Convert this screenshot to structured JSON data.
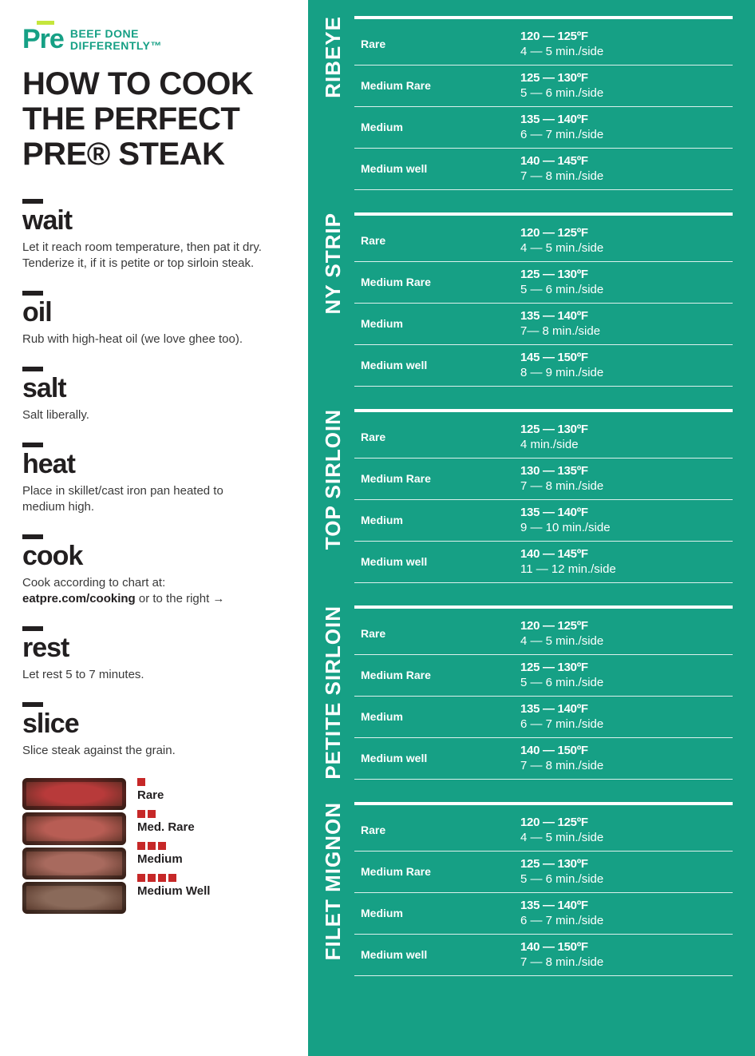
{
  "brand": {
    "logo": "Pre",
    "tagline_line1": "BEEF DONE",
    "tagline_line2": "DIFFERENTLY™",
    "accent_color": "#16a085",
    "lime_color": "#c5e63c"
  },
  "headline": "HOW TO COOK THE PERFECT PRE® STEAK",
  "steps": [
    {
      "title": "wait",
      "body": "Let it reach room temperature, then pat it dry. Tenderize it, if it is petite or top sirloin steak."
    },
    {
      "title": "oil",
      "body": "Rub with high-heat oil (we love ghee too)."
    },
    {
      "title": "salt",
      "body": "Salt liberally."
    },
    {
      "title": "heat",
      "body": "Place in skillet/cast iron pan heated to medium high."
    },
    {
      "title": "cook",
      "body": "Cook according to chart at: ",
      "bold": "eatpre.com/cooking",
      "body2": " or to the right →"
    },
    {
      "title": "rest",
      "body": "Let rest 5 to 7 minutes."
    },
    {
      "title": "slice",
      "body": "Slice steak against the grain."
    }
  ],
  "legend": {
    "square_color": "#c62828",
    "items": [
      {
        "squares": 1,
        "label": "Rare",
        "color": "#b83a3a"
      },
      {
        "squares": 2,
        "label": "Med. Rare",
        "color": "#b85d54"
      },
      {
        "squares": 3,
        "label": "Medium",
        "color": "#a86a5e"
      },
      {
        "squares": 4,
        "label": "Medium Well",
        "color": "#8a6a5a"
      }
    ]
  },
  "chart": {
    "background_color": "#16a085",
    "text_color": "#ffffff",
    "cut_label_fontsize": 26,
    "doneness_fontsize": 14,
    "cuts": [
      {
        "name": "RIBEYE",
        "rows": [
          {
            "doneness": "Rare",
            "temp": "120 — 125ºF",
            "time": "4 — 5 min./side"
          },
          {
            "doneness": "Medium Rare",
            "temp": "125 — 130ºF",
            "time": "5 — 6 min./side"
          },
          {
            "doneness": "Medium",
            "temp": "135 — 140ºF",
            "time": "6 — 7 min./side"
          },
          {
            "doneness": "Medium well",
            "temp": "140 — 145ºF",
            "time": "7 — 8 min./side"
          }
        ]
      },
      {
        "name": "NY STRIP",
        "rows": [
          {
            "doneness": "Rare",
            "temp": "120 — 125ºF",
            "time": "4 — 5 min./side"
          },
          {
            "doneness": "Medium Rare",
            "temp": "125 — 130ºF",
            "time": "5 — 6 min./side"
          },
          {
            "doneness": "Medium",
            "temp": "135 — 140ºF",
            "time": "7— 8 min./side"
          },
          {
            "doneness": "Medium well",
            "temp": "145 — 150ºF",
            "time": "8 — 9 min./side"
          }
        ]
      },
      {
        "name": "TOP SIRLOIN",
        "rows": [
          {
            "doneness": "Rare",
            "temp": "125 — 130ºF",
            "time": "4 min./side"
          },
          {
            "doneness": "Medium Rare",
            "temp": "130 — 135ºF",
            "time": "7 — 8 min./side"
          },
          {
            "doneness": "Medium",
            "temp": "135 — 140ºF",
            "time": "9 — 10 min./side"
          },
          {
            "doneness": "Medium well",
            "temp": "140 — 145ºF",
            "time": "11 — 12 min./side"
          }
        ]
      },
      {
        "name": "PETITE SIRLOIN",
        "rows": [
          {
            "doneness": "Rare",
            "temp": "120 — 125ºF",
            "time": "4 — 5 min./side"
          },
          {
            "doneness": "Medium Rare",
            "temp": "125 — 130ºF",
            "time": "5 — 6 min./side"
          },
          {
            "doneness": "Medium",
            "temp": "135 — 140ºF",
            "time": "6 — 7 min./side"
          },
          {
            "doneness": "Medium well",
            "temp": "140 — 150ºF",
            "time": "7 — 8 min./side"
          }
        ]
      },
      {
        "name": "FILET MIGNON",
        "rows": [
          {
            "doneness": "Rare",
            "temp": "120 — 125ºF",
            "time": "4 — 5 min./side"
          },
          {
            "doneness": "Medium Rare",
            "temp": "125 — 130ºF",
            "time": "5 — 6 min./side"
          },
          {
            "doneness": "Medium",
            "temp": "135 — 140ºF",
            "time": "6 — 7 min./side"
          },
          {
            "doneness": "Medium well",
            "temp": "140 — 150ºF",
            "time": "7 — 8 min./side"
          }
        ]
      }
    ]
  }
}
